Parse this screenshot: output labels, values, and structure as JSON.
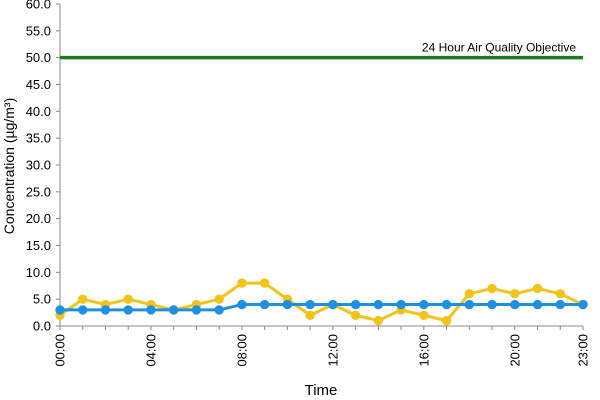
{
  "chart_data": {
    "type": "line",
    "title": "",
    "xlabel": "Time",
    "ylabel": "Concentration (µg/m³)",
    "ylim": [
      0,
      60
    ],
    "y_ticks": [
      "0.0",
      "5.0",
      "10.0",
      "15.0",
      "20.0",
      "25.0",
      "30.0",
      "35.0",
      "40.0",
      "45.0",
      "50.0",
      "55.0",
      "60.0"
    ],
    "x": [
      0,
      1,
      2,
      3,
      4,
      5,
      6,
      7,
      8,
      9,
      10,
      11,
      12,
      13,
      14,
      15,
      16,
      17,
      18,
      19,
      20,
      21,
      22,
      23
    ],
    "x_ticks": [
      {
        "hour": 0,
        "label": "00:00"
      },
      {
        "hour": 4,
        "label": "04:00"
      },
      {
        "hour": 8,
        "label": "08:00"
      },
      {
        "hour": 12,
        "label": "12:00"
      },
      {
        "hour": 16,
        "label": "16:00"
      },
      {
        "hour": 20,
        "label": "20:00"
      },
      {
        "hour": 23,
        "label": "23:00"
      }
    ],
    "grid": false,
    "series": [
      {
        "color": "#F0C419",
        "marker_fill": "#F0C419",
        "values": [
          2,
          5,
          4,
          5,
          4,
          3,
          4,
          5,
          8,
          8,
          5,
          2,
          4,
          2,
          1,
          3,
          2,
          1,
          6,
          7,
          6,
          7,
          6,
          4
        ]
      },
      {
        "color": "#1E90E0",
        "marker_fill": "#1E90E0",
        "values": [
          3,
          3,
          3,
          3,
          3,
          3,
          3,
          3,
          4,
          4,
          4,
          4,
          4,
          4,
          4,
          4,
          4,
          4,
          4,
          4,
          4,
          4,
          4,
          4
        ]
      }
    ],
    "objective": {
      "value": 50,
      "label": "24 Hour Air Quality Objective",
      "color": "#1E7A1E"
    }
  }
}
